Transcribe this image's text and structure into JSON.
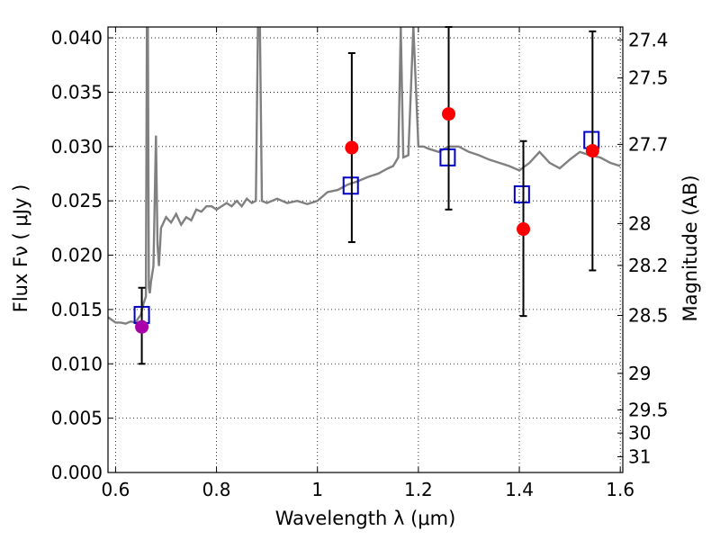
{
  "chart_data": {
    "type": "scatter",
    "xlabel": "Wavelength  λ (μm)",
    "ylabel": "Flux  Fν  ( μJy )",
    "ylabel2": "Magnitude (AB)",
    "xlim": [
      0.585,
      1.605
    ],
    "ylim": [
      0.0,
      0.041
    ],
    "grid": true,
    "x_ticks": [
      0.6,
      0.8,
      1.0,
      1.2,
      1.4,
      1.6
    ],
    "x_tick_labels": [
      "0.6",
      "0.8",
      "1",
      "1.2",
      "1.4",
      "1.6"
    ],
    "y_ticks": [
      0.0,
      0.005,
      0.01,
      0.015,
      0.02,
      0.025,
      0.03,
      0.035,
      0.04
    ],
    "y_tick_labels": [
      "0.000",
      "0.005",
      "0.010",
      "0.015",
      "0.020",
      "0.025",
      "0.030",
      "0.035",
      "0.040"
    ],
    "mag_ticks": [
      27.4,
      27.5,
      27.7,
      28,
      28.2,
      28.5,
      29,
      29.5,
      30,
      31
    ],
    "mag_tick_labels": [
      "27.4",
      "27.5",
      "27.7",
      "28",
      "28.2",
      "28.5",
      "29",
      "29.5",
      "30",
      "31"
    ],
    "colors": {
      "spectrum": "#808080",
      "observed": "#ff0000",
      "observed_first": "#aa00aa",
      "model": "#0000cc",
      "errorbar": "#000000"
    },
    "spectrum": {
      "x": [
        0.585,
        0.6,
        0.61,
        0.62,
        0.63,
        0.64,
        0.645,
        0.65,
        0.655,
        0.66,
        0.662,
        0.664,
        0.666,
        0.668,
        0.67,
        0.675,
        0.68,
        0.683,
        0.686,
        0.69,
        0.7,
        0.71,
        0.72,
        0.73,
        0.74,
        0.75,
        0.76,
        0.77,
        0.78,
        0.79,
        0.8,
        0.81,
        0.82,
        0.83,
        0.84,
        0.85,
        0.86,
        0.87,
        0.878,
        0.882,
        0.886,
        0.89,
        0.9,
        0.92,
        0.94,
        0.96,
        0.98,
        1.0,
        1.02,
        1.04,
        1.06,
        1.08,
        1.1,
        1.12,
        1.14,
        1.15,
        1.16,
        1.165,
        1.17,
        1.18,
        1.19,
        1.2,
        1.21,
        1.22,
        1.24,
        1.26,
        1.28,
        1.3,
        1.32,
        1.34,
        1.36,
        1.38,
        1.4,
        1.42,
        1.44,
        1.46,
        1.48,
        1.5,
        1.52,
        1.54,
        1.56,
        1.58,
        1.6
      ],
      "y": [
        0.0143,
        0.0138,
        0.0138,
        0.0137,
        0.0139,
        0.0138,
        0.0142,
        0.0145,
        0.0155,
        0.0162,
        0.041,
        0.041,
        0.017,
        0.0165,
        0.0175,
        0.019,
        0.031,
        0.021,
        0.019,
        0.0225,
        0.0235,
        0.023,
        0.0238,
        0.0228,
        0.0235,
        0.0232,
        0.0242,
        0.024,
        0.0245,
        0.0245,
        0.0242,
        0.0245,
        0.0248,
        0.0245,
        0.025,
        0.0245,
        0.0252,
        0.0248,
        0.025,
        0.041,
        0.041,
        0.025,
        0.0248,
        0.0252,
        0.0248,
        0.025,
        0.0247,
        0.025,
        0.0258,
        0.026,
        0.0265,
        0.0268,
        0.0272,
        0.0275,
        0.028,
        0.0282,
        0.029,
        0.041,
        0.029,
        0.0292,
        0.041,
        0.03,
        0.03,
        0.0298,
        0.0295,
        0.03,
        0.03,
        0.0295,
        0.0292,
        0.0288,
        0.0285,
        0.0282,
        0.0278,
        0.0285,
        0.0295,
        0.0285,
        0.028,
        0.0288,
        0.0295,
        0.0292,
        0.029,
        0.0285,
        0.0282
      ]
    },
    "observed": [
      {
        "x": 0.652,
        "y": 0.0134,
        "err_low": 0.01,
        "err_high": 0.017
      },
      {
        "x": 1.068,
        "y": 0.0299,
        "err_low": 0.0212,
        "err_high": 0.0386
      },
      {
        "x": 1.26,
        "y": 0.033,
        "err_low": 0.0242,
        "err_high": 0.041
      },
      {
        "x": 1.408,
        "y": 0.0224,
        "err_low": 0.0144,
        "err_high": 0.0305
      },
      {
        "x": 1.545,
        "y": 0.0296,
        "err_low": 0.0186,
        "err_high": 0.0406
      }
    ],
    "model": [
      {
        "x": 0.652,
        "y": 0.0145
      },
      {
        "x": 1.066,
        "y": 0.0264
      },
      {
        "x": 1.258,
        "y": 0.029
      },
      {
        "x": 1.405,
        "y": 0.0256
      },
      {
        "x": 1.543,
        "y": 0.0306
      }
    ]
  }
}
